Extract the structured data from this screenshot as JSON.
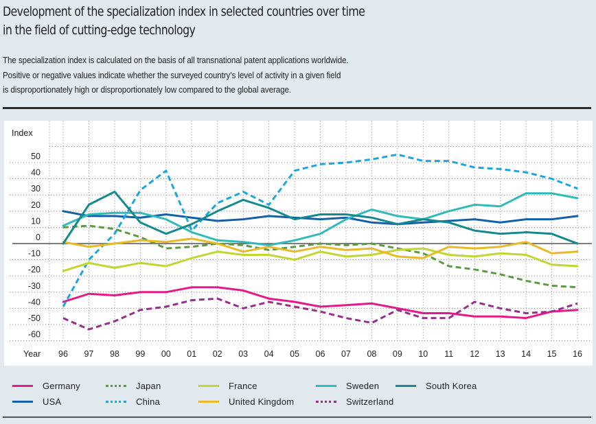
{
  "header": {
    "title_line1": "Development of the specialization index in selected countries over time",
    "title_line2": "in the field of cutting-edge technology",
    "description": [
      "The specialization index is calculated on the basis of all transnational patent applications worldwide.",
      "Positive or negative values indicate whether the surveyed country’s level of activity in a given field",
      "is disproportionately high or disproportionately low compared to the global average."
    ]
  },
  "chart_data": {
    "type": "line",
    "title": "Development of the specialization index in selected countries over time in the field of cutting-edge technology",
    "xlabel": "Year",
    "ylabel": "Index",
    "x": [
      "96",
      "97",
      "98",
      "99",
      "00",
      "01",
      "02",
      "03",
      "04",
      "05",
      "06",
      "07",
      "08",
      "09",
      "10",
      "11",
      "12",
      "13",
      "14",
      "15",
      "16"
    ],
    "yticks": [
      50,
      40,
      30,
      20,
      10,
      0,
      -10,
      -20,
      -30,
      -40,
      -50,
      -60
    ],
    "ylim": [
      -60,
      60
    ],
    "grid": true,
    "legend_position": "bottom",
    "series": [
      {
        "name": "Germany",
        "color": "#e5198a",
        "dashed": false,
        "values": [
          -36,
          -31,
          -32,
          -30,
          -30,
          -27,
          -27,
          -29,
          -34,
          -36,
          -39,
          -38,
          -37,
          -40,
          -43,
          -43,
          -45,
          -45,
          -46,
          -42,
          -41
        ]
      },
      {
        "name": "USA",
        "color": "#1360a8",
        "dashed": false,
        "values": [
          20,
          17,
          17,
          16,
          18,
          16,
          14,
          15,
          17,
          16,
          15,
          16,
          13,
          12,
          13,
          14,
          15,
          13,
          15,
          15,
          17
        ]
      },
      {
        "name": "Japan",
        "color": "#5b9b3f",
        "dashed": true,
        "values": [
          10,
          11,
          9,
          4,
          -3,
          -2,
          0,
          -1,
          -4,
          -2,
          0,
          -1,
          0,
          -3,
          -6,
          -14,
          -16,
          -19,
          -23,
          -26,
          -27
        ]
      },
      {
        "name": "China",
        "color": "#1ba6e0",
        "dashed": true,
        "values": [
          -39,
          -10,
          6,
          33,
          45,
          8,
          25,
          32,
          24,
          45,
          49,
          50,
          52,
          55,
          51,
          51,
          47,
          46,
          44,
          40,
          34
        ]
      },
      {
        "name": "France",
        "color": "#c1d631",
        "dashed": false,
        "values": [
          -17,
          -12,
          -15,
          -12,
          -14,
          -9,
          -5,
          -7,
          -7,
          -10,
          -5,
          -8,
          -7,
          -4,
          -3,
          -7,
          -8,
          -6,
          -7,
          -13,
          -14
        ]
      },
      {
        "name": "United Kingdom",
        "color": "#e8bb26",
        "dashed": false,
        "values": [
          1,
          -2,
          0,
          2,
          1,
          3,
          0,
          -5,
          -2,
          -5,
          -2,
          -4,
          -3,
          -8,
          -9,
          -2,
          -3,
          -2,
          1,
          -6,
          -5
        ]
      },
      {
        "name": "Sweden",
        "color": "#2ebcbb",
        "dashed": false,
        "values": [
          11,
          18,
          19,
          19,
          15,
          7,
          2,
          1,
          -1,
          2,
          6,
          15,
          21,
          17,
          15,
          20,
          24,
          23,
          31,
          31,
          28
        ]
      },
      {
        "name": "Switzerland",
        "color": "#952f8c",
        "dashed": true,
        "values": [
          -46,
          -53,
          -48,
          -41,
          -39,
          -35,
          -34,
          -40,
          -36,
          -39,
          -42,
          -46,
          -49,
          -41,
          -46,
          -46,
          -36,
          -40,
          -43,
          -42,
          -37
        ]
      },
      {
        "name": "South Korea",
        "color": "#14898f",
        "dashed": false,
        "values": [
          0,
          24,
          32,
          13,
          6,
          12,
          20,
          27,
          22,
          15,
          18,
          18,
          16,
          12,
          15,
          13,
          8,
          6,
          7,
          6,
          0
        ]
      }
    ]
  },
  "legend": {
    "rows": [
      [
        "Germany",
        "Japan",
        "France",
        "Sweden",
        "South Korea"
      ],
      [
        "USA",
        "China",
        "United Kingdom",
        "Switzerland"
      ]
    ]
  }
}
